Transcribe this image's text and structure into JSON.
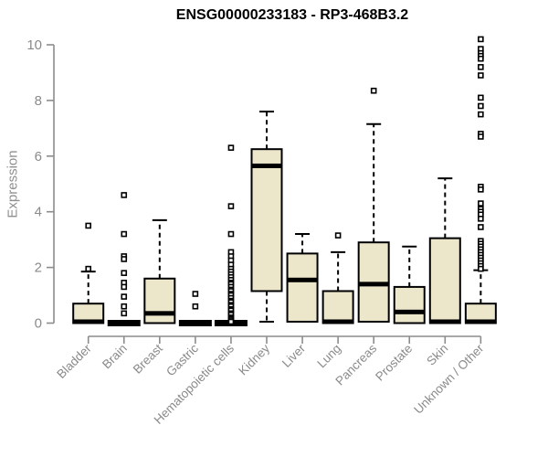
{
  "chart_data": {
    "type": "box",
    "title": "ENSG00000233183 - RP3-468B3.2",
    "ylabel": "Expression",
    "xlabel": "",
    "ylim": [
      0,
      10.4
    ],
    "yticks": [
      0,
      2,
      4,
      6,
      8,
      10
    ],
    "grid": false,
    "legend_position": "none",
    "categories": [
      "Bladder",
      "Brain",
      "Breast",
      "Gastric",
      "Hematopoietic cells",
      "Kidney",
      "Liver",
      "Lung",
      "Pancreas",
      "Prostate",
      "Skin",
      "Unknown / Other"
    ],
    "boxes": [
      {
        "name": "Bladder",
        "whisker_low": 0,
        "q1": 0,
        "median": 0.05,
        "q3": 0.7,
        "whisker_high": 1.85,
        "outliers": [
          3.5,
          1.95
        ]
      },
      {
        "name": "Brain",
        "whisker_low": 0,
        "q1": 0,
        "median": 0,
        "q3": 0,
        "whisker_high": 0,
        "outliers": [
          4.6,
          3.2,
          2.4,
          2.3,
          1.8,
          1.45,
          1.3,
          0.95,
          0.6,
          0.35
        ]
      },
      {
        "name": "Breast",
        "whisker_low": 0,
        "q1": 0,
        "median": 0.35,
        "q3": 1.6,
        "whisker_high": 3.7,
        "outliers": []
      },
      {
        "name": "Gastric",
        "whisker_low": 0,
        "q1": 0,
        "median": 0,
        "q3": 0,
        "whisker_high": 0,
        "outliers": [
          1.05,
          0.6
        ]
      },
      {
        "name": "Hematopoietic cells",
        "whisker_low": 0,
        "q1": 0,
        "median": 0,
        "q3": 0,
        "whisker_high": 0,
        "outliers": [
          6.3,
          4.2,
          3.2,
          2.55,
          2.4,
          2.25,
          2.1,
          1.95,
          1.85,
          1.75,
          1.65,
          1.55,
          1.45,
          1.4,
          1.3,
          1.2,
          1.15,
          1.05,
          1.0,
          0.9,
          0.8,
          0.75,
          0.65,
          0.6,
          0.5,
          0.45,
          0.35,
          0.3,
          0.2,
          0.15,
          0.1,
          0.05
        ]
      },
      {
        "name": "Kidney",
        "whisker_low": 0.05,
        "q1": 1.15,
        "median": 5.65,
        "q3": 6.25,
        "whisker_high": 7.6,
        "outliers": []
      },
      {
        "name": "Liver",
        "whisker_low": 0.05,
        "q1": 0.05,
        "median": 1.55,
        "q3": 2.5,
        "whisker_high": 3.2,
        "outliers": []
      },
      {
        "name": "Lung",
        "whisker_low": 0,
        "q1": 0,
        "median": 0.05,
        "q3": 1.15,
        "whisker_high": 2.55,
        "outliers": [
          3.15
        ]
      },
      {
        "name": "Pancreas",
        "whisker_low": 0.05,
        "q1": 0.05,
        "median": 1.4,
        "q3": 2.9,
        "whisker_high": 7.15,
        "outliers": [
          8.35
        ]
      },
      {
        "name": "Prostate",
        "whisker_low": 0,
        "q1": 0,
        "median": 0.4,
        "q3": 1.3,
        "whisker_high": 2.75,
        "outliers": []
      },
      {
        "name": "Skin",
        "whisker_low": 0,
        "q1": 0,
        "median": 0.05,
        "q3": 3.05,
        "whisker_high": 5.2,
        "outliers": []
      },
      {
        "name": "Unknown / Other",
        "whisker_low": 0,
        "q1": 0,
        "median": 0.05,
        "q3": 0.7,
        "whisker_high": 1.9,
        "outliers": [
          10.2,
          9.85,
          9.7,
          9.6,
          9.5,
          9.2,
          8.9,
          8.1,
          7.8,
          7.5,
          6.8,
          6.7,
          4.9,
          4.8,
          4.3,
          4.1,
          4.0,
          3.9,
          3.75,
          3.45,
          2.95,
          2.85,
          2.75,
          2.65,
          2.55,
          2.45,
          2.35,
          2.25,
          2.15,
          2.05,
          1.95
        ]
      }
    ]
  },
  "colors": {
    "box_fill": "#ECE6CB",
    "box_border": "#000000",
    "median": "#000000",
    "whisker": "#000000",
    "outlier_stroke": "#000000",
    "outlier_fill": "#ffffff",
    "axis_line": "#8c8c8c",
    "axis_text": "#8a8a8a",
    "title_text": "#000000",
    "background": "#ffffff"
  }
}
